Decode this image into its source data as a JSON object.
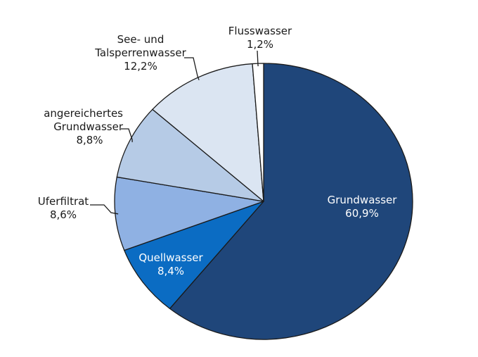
{
  "chart_data": {
    "type": "pie",
    "start_angle_deg": 0,
    "direction": "clockwise",
    "slices": [
      {
        "label_lines": [
          "Grundwasser"
        ],
        "value_text": "60,9%",
        "value": 60.9,
        "color": "#1f467a"
      },
      {
        "label_lines": [
          "Quellwasser"
        ],
        "value_text": "8,4%",
        "value": 8.4,
        "color": "#0b6cc3"
      },
      {
        "label_lines": [
          "Uferfiltrat"
        ],
        "value_text": "8,6%",
        "value": 8.6,
        "color": "#8fb1e3"
      },
      {
        "label_lines": [
          "angereichertes",
          "Grundwasser"
        ],
        "value_text": "8,8%",
        "value": 8.8,
        "color": "#b6cbe6"
      },
      {
        "label_lines": [
          "See- und",
          "Talsperrenwasser"
        ],
        "value_text": "12,2%",
        "value": 12.2,
        "color": "#dbe5f2"
      },
      {
        "label_lines": [
          "Flusswasser"
        ],
        "value_text": "1,2%",
        "value": 1.2,
        "color": "#ffffff"
      }
    ],
    "edge_color": "#1a1a1a"
  }
}
